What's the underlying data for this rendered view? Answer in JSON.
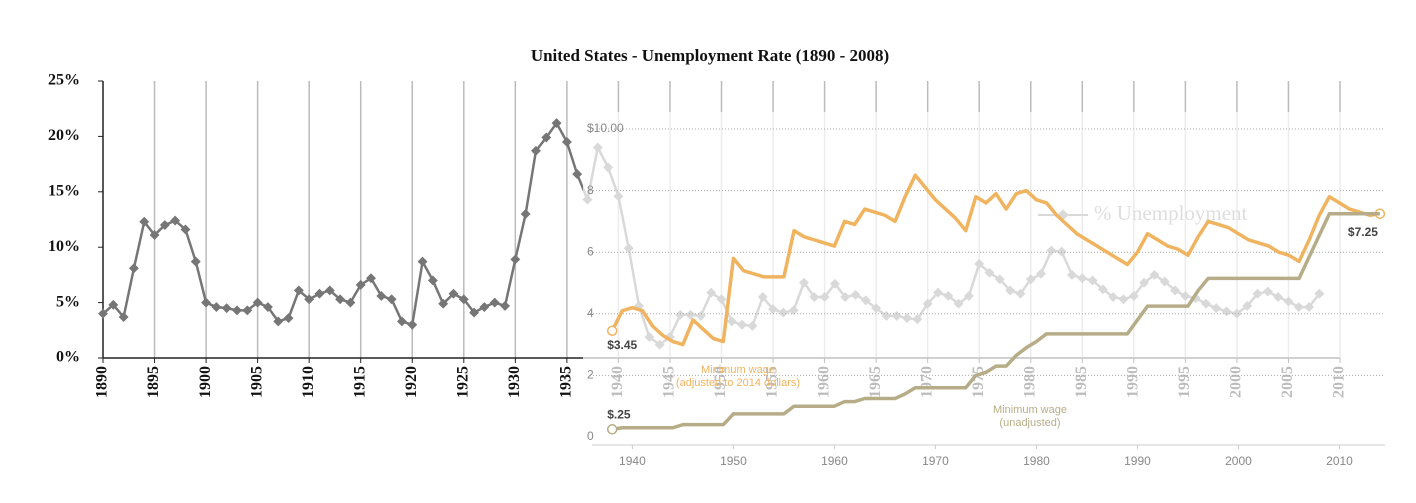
{
  "chart_data": [
    {
      "type": "line",
      "title": "United States - Unemployment Rate (1890 - 2008)",
      "x": [
        1890,
        1891,
        1892,
        1893,
        1894,
        1895,
        1896,
        1897,
        1898,
        1899,
        1900,
        1901,
        1902,
        1903,
        1904,
        1905,
        1906,
        1907,
        1908,
        1909,
        1910,
        1911,
        1912,
        1913,
        1914,
        1915,
        1916,
        1917,
        1918,
        1919,
        1920,
        1921,
        1922,
        1923,
        1924,
        1925,
        1926,
        1927,
        1928,
        1929,
        1930,
        1931,
        1932,
        1933,
        1934,
        1935,
        1936,
        1937,
        1938,
        1939,
        1940,
        1941,
        1942,
        1943,
        1944,
        1945,
        1946,
        1947,
        1948,
        1949,
        1950,
        1951,
        1952,
        1953,
        1954,
        1955,
        1956,
        1957,
        1958,
        1959,
        1960,
        1961,
        1962,
        1963,
        1964,
        1965,
        1966,
        1967,
        1968,
        1969,
        1970,
        1971,
        1972,
        1973,
        1974,
        1975,
        1976,
        1977,
        1978,
        1979,
        1980,
        1981,
        1982,
        1983,
        1984,
        1985,
        1986,
        1987,
        1988,
        1989,
        1990,
        1991,
        1992,
        1993,
        1994,
        1995,
        1996,
        1997,
        1998,
        1999,
        2000,
        2001,
        2002,
        2003,
        2004,
        2005,
        2006,
        2007,
        2008
      ],
      "series": [
        {
          "name": "% Unemployment",
          "color": "#767676",
          "values": [
            4.0,
            4.8,
            3.7,
            8.1,
            12.3,
            11.1,
            12.0,
            12.4,
            11.6,
            8.7,
            5.0,
            4.6,
            4.5,
            4.3,
            4.3,
            5.0,
            4.6,
            3.3,
            3.6,
            6.1,
            5.3,
            5.8,
            6.1,
            5.3,
            5.0,
            6.6,
            7.2,
            5.6,
            5.3,
            3.3,
            3.0,
            8.7,
            7.0,
            4.9,
            5.8,
            5.3,
            4.1,
            4.6,
            5.0,
            4.7,
            8.9,
            13.0,
            18.7,
            19.9,
            21.2,
            19.5,
            16.6,
            14.3,
            19.0,
            17.2,
            14.6,
            9.9,
            4.7,
            1.9,
            1.2,
            1.9,
            3.9,
            3.9,
            3.8,
            5.9,
            5.3,
            3.3,
            3.0,
            2.9,
            5.5,
            4.4,
            4.1,
            4.3,
            6.8,
            5.5,
            5.5,
            6.7,
            5.5,
            5.7,
            5.2,
            4.5,
            3.8,
            3.8,
            3.6,
            3.5,
            4.9,
            5.9,
            5.6,
            4.9,
            5.6,
            8.5,
            7.7,
            7.1,
            6.1,
            5.8,
            7.1,
            7.6,
            9.7,
            9.6,
            7.5,
            7.2,
            7.0,
            6.2,
            5.5,
            5.3,
            5.6,
            6.8,
            7.5,
            6.9,
            6.1,
            5.6,
            5.4,
            4.9,
            4.5,
            4.2,
            4.0,
            4.7,
            5.8,
            6.0,
            5.5,
            5.1,
            4.6,
            4.6,
            5.8
          ]
        }
      ],
      "xlim": [
        1890,
        2010
      ],
      "xticks": [
        1890,
        1895,
        1900,
        1905,
        1910,
        1915,
        1920,
        1925,
        1930,
        1935,
        1940,
        1945,
        1950,
        1955,
        1960,
        1965,
        1970,
        1975,
        1980,
        1985,
        1990,
        1995,
        2000,
        2005,
        2010
      ],
      "ylim": [
        0,
        25
      ],
      "yticks": [
        {
          "value": 0,
          "label": "0%"
        },
        {
          "value": 5,
          "label": "5%"
        },
        {
          "value": 10,
          "label": "10%"
        },
        {
          "value": 15,
          "label": "15%"
        },
        {
          "value": 20,
          "label": "20%"
        },
        {
          "value": 25,
          "label": "25%"
        }
      ],
      "grid": "x",
      "legend": "upper right"
    },
    {
      "type": "line",
      "x": [
        1938,
        1939,
        1940,
        1941,
        1942,
        1943,
        1944,
        1945,
        1946,
        1947,
        1948,
        1949,
        1950,
        1951,
        1952,
        1953,
        1954,
        1955,
        1956,
        1957,
        1958,
        1959,
        1960,
        1961,
        1962,
        1963,
        1964,
        1965,
        1966,
        1967,
        1968,
        1969,
        1970,
        1971,
        1972,
        1973,
        1974,
        1975,
        1976,
        1977,
        1978,
        1979,
        1980,
        1981,
        1982,
        1983,
        1984,
        1985,
        1986,
        1987,
        1988,
        1989,
        1990,
        1991,
        1992,
        1993,
        1994,
        1995,
        1996,
        1997,
        1998,
        1999,
        2000,
        2001,
        2002,
        2003,
        2004,
        2005,
        2006,
        2007,
        2008,
        2009,
        2010,
        2011,
        2012,
        2013,
        2014
      ],
      "series": [
        {
          "name": "Minimum wage\n(adjusted to 2014 dollars)",
          "color": "#f0b35f",
          "values": [
            3.45,
            4.1,
            4.2,
            4.1,
            3.6,
            3.3,
            3.1,
            3.0,
            3.8,
            3.5,
            3.2,
            3.1,
            5.8,
            5.4,
            5.3,
            5.2,
            5.2,
            5.2,
            6.7,
            6.5,
            6.4,
            6.3,
            6.2,
            7.0,
            6.9,
            7.4,
            7.3,
            7.2,
            7.0,
            7.8,
            8.5,
            8.1,
            7.7,
            7.4,
            7.1,
            6.7,
            7.8,
            7.6,
            7.9,
            7.4,
            7.9,
            8.0,
            7.7,
            7.6,
            7.2,
            6.9,
            6.6,
            6.4,
            6.2,
            6.0,
            5.8,
            5.6,
            6.0,
            6.6,
            6.4,
            6.2,
            6.1,
            5.9,
            6.5,
            7.0,
            6.9,
            6.8,
            6.6,
            6.4,
            6.3,
            6.2,
            6.0,
            5.9,
            5.7,
            6.4,
            7.2,
            7.8,
            7.6,
            7.4,
            7.3,
            7.2,
            7.25
          ],
          "value_labels": [
            "$3.45",
            null,
            null,
            null,
            null,
            null,
            null,
            null,
            null,
            null,
            null,
            null,
            null,
            null,
            null,
            null,
            null,
            null,
            null,
            null,
            null,
            null,
            null,
            null,
            null,
            null,
            null,
            null,
            null,
            null,
            null,
            null,
            null,
            null,
            null,
            null,
            null,
            null,
            null,
            null,
            null,
            null,
            null,
            null,
            null,
            null,
            null,
            null,
            null,
            null,
            null,
            null,
            null,
            null,
            null,
            null,
            null,
            null,
            null,
            null,
            null,
            null,
            null,
            null,
            null,
            null,
            null,
            null,
            null,
            null,
            null,
            null,
            null,
            null,
            null,
            null,
            "$7.25"
          ]
        },
        {
          "name": "Minimum wage\n(unadjusted)",
          "color": "#b6ad88",
          "values": [
            0.25,
            0.3,
            0.3,
            0.3,
            0.3,
            0.3,
            0.3,
            0.4,
            0.4,
            0.4,
            0.4,
            0.4,
            0.75,
            0.75,
            0.75,
            0.75,
            0.75,
            0.75,
            1.0,
            1.0,
            1.0,
            1.0,
            1.0,
            1.15,
            1.15,
            1.25,
            1.25,
            1.25,
            1.25,
            1.4,
            1.6,
            1.6,
            1.6,
            1.6,
            1.6,
            1.6,
            2.0,
            2.1,
            2.3,
            2.3,
            2.65,
            2.9,
            3.1,
            3.35,
            3.35,
            3.35,
            3.35,
            3.35,
            3.35,
            3.35,
            3.35,
            3.35,
            3.8,
            4.25,
            4.25,
            4.25,
            4.25,
            4.25,
            4.75,
            5.15,
            5.15,
            5.15,
            5.15,
            5.15,
            5.15,
            5.15,
            5.15,
            5.15,
            5.15,
            5.85,
            6.55,
            7.25,
            7.25,
            7.25,
            7.25,
            7.25,
            7.25
          ],
          "value_labels": [
            "$.25",
            null,
            null,
            null,
            null,
            null,
            null,
            null,
            null,
            null,
            null,
            null,
            null,
            null,
            null,
            null,
            null,
            null,
            null,
            null,
            null,
            null,
            null,
            null,
            null,
            null,
            null,
            null,
            null,
            null,
            null,
            null,
            null,
            null,
            null,
            null,
            null,
            null,
            null,
            null,
            null,
            null,
            null,
            null,
            null,
            null,
            null,
            null,
            null,
            null,
            null,
            null,
            null,
            null,
            null,
            null,
            null,
            null,
            null,
            null,
            null,
            null,
            null,
            null,
            null,
            null,
            null,
            null,
            null,
            null,
            null,
            null,
            null,
            null,
            null,
            null,
            null
          ]
        }
      ],
      "xlim": [
        1936,
        2015
      ],
      "xticks": [
        1940,
        1950,
        1960,
        1970,
        1980,
        1990,
        2000,
        2010
      ],
      "ylim": [
        0,
        10
      ],
      "yticks": [
        0,
        2,
        4,
        6,
        8,
        {
          "value": 10,
          "label": "$10.00"
        }
      ],
      "grid": "y"
    }
  ]
}
